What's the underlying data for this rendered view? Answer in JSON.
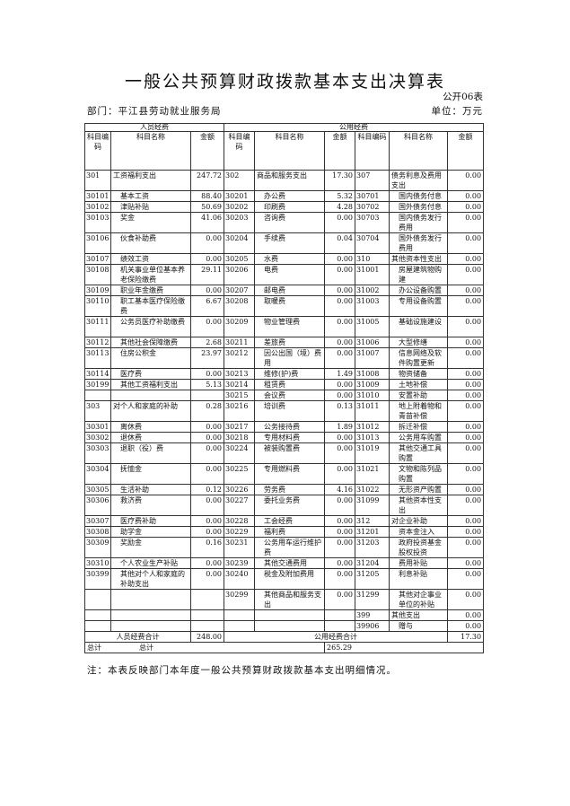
{
  "title": "一般公共预算财政拨款基本支出决算表",
  "form_no": "公开06表",
  "department": "部门：平江县劳动就业服务局",
  "unit": "单位：万元",
  "header": {
    "personnel": "人员经费",
    "public": "公用经费",
    "code": "科目编码",
    "name": "科目名称",
    "amount": "金额"
  },
  "rows": [
    {
      "h": "d",
      "c1": "301",
      "n1": "工资福利支出",
      "a1": "247.72",
      "c2": "302",
      "n2": "商品和服务支出",
      "a2": "17.30",
      "c3": "307",
      "n3": "债务利息及费用支出",
      "a3": "0.00"
    },
    {
      "h": "s",
      "c1": "30101",
      "n1": "基本工资",
      "a1": "88.40",
      "c2": "30201",
      "n2": "办公费",
      "a2": "5.32",
      "c3": "30701",
      "n3": "国内债务付息",
      "a3": "0.00"
    },
    {
      "h": "s",
      "c1": "30102",
      "n1": "津贴补贴",
      "a1": "50.69",
      "c2": "30202",
      "n2": "印刷费",
      "a2": "4.28",
      "c3": "30702",
      "n3": "国外债务付息",
      "a3": "0.00"
    },
    {
      "h": "d",
      "c1": "30103",
      "n1": "奖金",
      "a1": "41.06",
      "c2": "30203",
      "n2": "咨询费",
      "a2": "0.00",
      "c3": "30703",
      "n3": "国内债务发行费用",
      "a3": "0.00"
    },
    {
      "h": "d",
      "c1": "30106",
      "n1": "伙食补助费",
      "a1": "0.00",
      "c2": "30204",
      "n2": "手续费",
      "a2": "0.04",
      "c3": "30704",
      "n3": "国外债务发行费用",
      "a3": "0.00"
    },
    {
      "h": "s",
      "c1": "30107",
      "n1": "绩效工资",
      "a1": "0.00",
      "c2": "30205",
      "n2": "水费",
      "a2": "0.00",
      "c3": "310",
      "n3": "其他资本性支出",
      "a3": "0.00"
    },
    {
      "h": "d",
      "c1": "30108",
      "n1": "机关事业单位基本养老保险缴费",
      "a1": "29.11",
      "c2": "30206",
      "n2": "电费",
      "a2": "0.00",
      "c3": "31001",
      "n3": "房屋建筑物购建",
      "a3": "0.00"
    },
    {
      "h": "s",
      "c1": "30109",
      "n1": "职业年金缴费",
      "a1": "0.00",
      "c2": "30207",
      "n2": "邮电费",
      "a2": "0.00",
      "c3": "31002",
      "n3": "办公设备购置",
      "a3": "0.00"
    },
    {
      "h": "d",
      "c1": "30110",
      "n1": "职工基本医疗保险缴费",
      "a1": "6.67",
      "c2": "30208",
      "n2": "取暖费",
      "a2": "0.00",
      "c3": "31003",
      "n3": "专用设备购置",
      "a3": "0.00"
    },
    {
      "h": "d",
      "c1": "30111",
      "n1": "公务员医疗补助缴费",
      "a1": "0.00",
      "c2": "30209",
      "n2": "物业管理费",
      "a2": "0.00",
      "c3": "31005",
      "n3": "基础设施建设",
      "a3": "0.00"
    },
    {
      "h": "s",
      "c1": "30112",
      "n1": "其他社会保障缴费",
      "a1": "2.68",
      "c2": "30211",
      "n2": "差旅费",
      "a2": "0.00",
      "c3": "31006",
      "n3": "大型修缮",
      "a3": "0.00"
    },
    {
      "h": "d",
      "c1": "30113",
      "n1": "住房公积金",
      "a1": "23.97",
      "c2": "30212",
      "n2": "因公出国（境）费用",
      "a2": "0.00",
      "c3": "31007",
      "n3": "信息网络及软件购置更新",
      "a3": "0.00"
    },
    {
      "h": "s",
      "c1": "30114",
      "n1": "医疗费",
      "a1": "0.00",
      "c2": "30213",
      "n2": "维修(护)费",
      "a2": "1.49",
      "c3": "31008",
      "n3": "物资储备",
      "a3": "0.00"
    },
    {
      "h": "s",
      "c1": "30199",
      "n1": "其他工资福利支出",
      "a1": "5.13",
      "c2": "30214",
      "n2": "租赁费",
      "a2": "0.00",
      "c3": "31009",
      "n3": "土地补偿",
      "a3": "0.00"
    },
    {
      "h": "s",
      "c1": "",
      "n1": "",
      "a1": "",
      "c2": "30215",
      "n2": "会议费",
      "a2": "0.00",
      "c3": "31010",
      "n3": "安置补助",
      "a3": "0.00"
    },
    {
      "h": "d",
      "c1": "303",
      "n1": "对个人和家庭的补助",
      "a1": "0.28",
      "c2": "30216",
      "n2": "培训费",
      "a2": "0.13",
      "c3": "31011",
      "n3": "地上附着物和青苗补偿",
      "a3": "0.00"
    },
    {
      "h": "s",
      "c1": "30301",
      "n1": "离休费",
      "a1": "0.00",
      "c2": "30217",
      "n2": "公务接待费",
      "a2": "1.89",
      "c3": "31012",
      "n3": "拆迁补偿",
      "a3": "0.00"
    },
    {
      "h": "s",
      "c1": "30302",
      "n1": "退休费",
      "a1": "0.00",
      "c2": "30218",
      "n2": "专用材料费",
      "a2": "0.00",
      "c3": "31013",
      "n3": "公务用车购置",
      "a3": "0.00"
    },
    {
      "h": "d",
      "c1": "30303",
      "n1": "退职（役）费",
      "a1": "0.00",
      "c2": "30224",
      "n2": "被装购置费",
      "a2": "0.00",
      "c3": "31019",
      "n3": "其他交通工具购置",
      "a3": "0.00"
    },
    {
      "h": "d",
      "c1": "30304",
      "n1": "抚恤金",
      "a1": "0.00",
      "c2": "30225",
      "n2": "专用燃料费",
      "a2": "0.00",
      "c3": "31021",
      "n3": "文物和陈列品购置",
      "a3": "0.00"
    },
    {
      "h": "s",
      "c1": "30305",
      "n1": "生活补助",
      "a1": "0.12",
      "c2": "30226",
      "n2": "劳务费",
      "a2": "4.16",
      "c3": "31022",
      "n3": "无形资产购置",
      "a3": "0.00"
    },
    {
      "h": "d",
      "c1": "30306",
      "n1": "救济费",
      "a1": "0.00",
      "c2": "30227",
      "n2": "委托业务费",
      "a2": "0.00",
      "c3": "31099",
      "n3": "其他资本性支出",
      "a3": "0.00"
    },
    {
      "h": "s",
      "c1": "30307",
      "n1": "医疗费补助",
      "a1": "0.00",
      "c2": "30228",
      "n2": "工会经费",
      "a2": "0.00",
      "c3": "312",
      "n3": "对企业补助",
      "a3": "0.00"
    },
    {
      "h": "s",
      "c1": "30308",
      "n1": "助学金",
      "a1": "0.00",
      "c2": "30229",
      "n2": "福利费",
      "a2": "0.00",
      "c3": "31201",
      "n3": "资本金注入",
      "a3": "0.00"
    },
    {
      "h": "d",
      "c1": "30309",
      "n1": "奖励金",
      "a1": "0.16",
      "c2": "30231",
      "n2": "公务用车运行维护费",
      "a2": "0.00",
      "c3": "31203",
      "n3": "政府投资基金股权投资",
      "a3": "0.00"
    },
    {
      "h": "s",
      "c1": "30310",
      "n1": "个人农业生产补贴",
      "a1": "0.00",
      "c2": "30239",
      "n2": "其他交通费用",
      "a2": "0.00",
      "c3": "31204",
      "n3": "费用补贴",
      "a3": "0.00"
    },
    {
      "h": "d",
      "c1": "30399",
      "n1": "其他对个人和家庭的补助支出",
      "a1": "0.00",
      "c2": "30240",
      "n2": "税金及附加费用",
      "a2": "0.00",
      "c3": "31205",
      "n3": "利息补贴",
      "a3": "0.00"
    },
    {
      "h": "d",
      "c1": "",
      "n1": "",
      "a1": "",
      "c2": "30299",
      "n2": "其他商品和服务支出",
      "a2": "0.00",
      "c3": "31299",
      "n3": "其他对企事业单位的补贴",
      "a3": "0.00"
    },
    {
      "h": "s",
      "c1": "",
      "n1": "",
      "a1": "",
      "c2": "",
      "n2": "",
      "a2": "",
      "c3": "399",
      "n3": "其他支出",
      "a3": "0.00"
    },
    {
      "h": "s",
      "c1": "",
      "n1": "",
      "a1": "",
      "c2": "",
      "n2": "",
      "a2": "",
      "c3": "39906",
      "n3": "赠与",
      "a3": "0.00"
    }
  ],
  "totals": {
    "personnel_label": "人员经费合计",
    "personnel_amount": "248.00",
    "public_label": "公用经费合计",
    "public_amount": "17.30",
    "grand_label_1": "总计",
    "grand_label_2": "总计",
    "grand_amount": "265.29"
  },
  "note": "注：本表反映部门本年度一般公共预算财政拨款基本支出明细情况。"
}
